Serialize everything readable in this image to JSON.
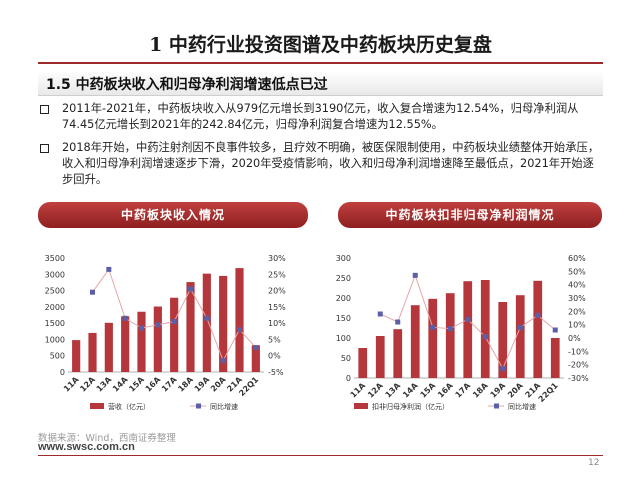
{
  "page": {
    "title": "1 中药行业投资图谱及中药板块历史复盘",
    "section_title": "1.5 中药板块收入和归母净利润增速低点已过",
    "bullets": [
      "2011年-2021年，中药板块收入从979亿元增长到3190亿元，收入复合增速为12.54%，归母净利润从74.45亿元增长到2021年的242.84亿元，归母净利润复合增速为12.55%。",
      "2018年开始，中药注射剂因不良事件较多，且疗效不明确，被医保限制使用，中药板块业绩整体开始承压，收入和归母净利润增速逐步下滑，2020年受疫情影响，收入和归母净利润增速降至最低点，2021年开始逐步回升。"
    ],
    "source": "数据来源：Wind，西南证券整理",
    "website": "www.swsc.com.cn",
    "page_number": "12"
  },
  "colors": {
    "bar": "#b5373b",
    "line": "#e8a5a8",
    "marker": "#5b5fa8",
    "title_rule": "#9c2a2a"
  },
  "chart_data": [
    {
      "type": "bar",
      "title": "中药板块收入情况",
      "categories": [
        "11A",
        "12A",
        "13A",
        "14A",
        "15A",
        "16A",
        "17A",
        "18A",
        "19A",
        "20A",
        "21A",
        "22Q1"
      ],
      "series": [
        {
          "name": "营收（亿元）",
          "axis": "left",
          "kind": "bar",
          "values": [
            979,
            1200,
            1510,
            1710,
            1850,
            2010,
            2280,
            2760,
            3020,
            2950,
            3190,
            820
          ]
        },
        {
          "name": "同比增速",
          "axis": "right",
          "kind": "line",
          "values": [
            null,
            19.5,
            26.5,
            11.5,
            8.5,
            9.5,
            10.5,
            20.5,
            11.5,
            -1.5,
            8.0,
            2.5
          ]
        }
      ],
      "ylim_left": [
        0,
        3500
      ],
      "yticks_left": [
        0,
        500,
        1000,
        1500,
        2000,
        2500,
        3000,
        3500
      ],
      "ylim_right": [
        -5,
        30
      ],
      "yticks_right": [
        "-5%",
        "0%",
        "5%",
        "10%",
        "15%",
        "20%",
        "25%",
        "30%"
      ],
      "legend": [
        "营收（亿元）",
        "同比增速"
      ],
      "legend_position": "bottom"
    },
    {
      "type": "bar",
      "title": "中药板块扣非归母净利润情况",
      "categories": [
        "11A",
        "12A",
        "13A",
        "14A",
        "15A",
        "16A",
        "17A",
        "18A",
        "19A",
        "20A",
        "21A",
        "22Q1"
      ],
      "series": [
        {
          "name": "扣非归母净利润（亿元）",
          "axis": "left",
          "kind": "bar",
          "values": [
            75,
            105,
            122,
            182,
            198,
            212,
            242,
            245,
            190,
            207,
            243,
            100
          ]
        },
        {
          "name": "同比增速",
          "axis": "right",
          "kind": "line",
          "values": [
            null,
            18,
            12,
            47,
            8,
            7,
            14,
            1,
            -23,
            8,
            17,
            6
          ]
        }
      ],
      "ylim_left": [
        0,
        300
      ],
      "yticks_left": [
        0,
        50,
        100,
        150,
        200,
        250,
        300
      ],
      "ylim_right": [
        -30,
        60
      ],
      "yticks_right": [
        "-30%",
        "-20%",
        "-10%",
        "0%",
        "10%",
        "20%",
        "30%",
        "40%",
        "50%",
        "60%"
      ],
      "legend": [
        "扣非归母净利润（亿元）",
        "同比增速"
      ],
      "legend_position": "bottom"
    }
  ]
}
